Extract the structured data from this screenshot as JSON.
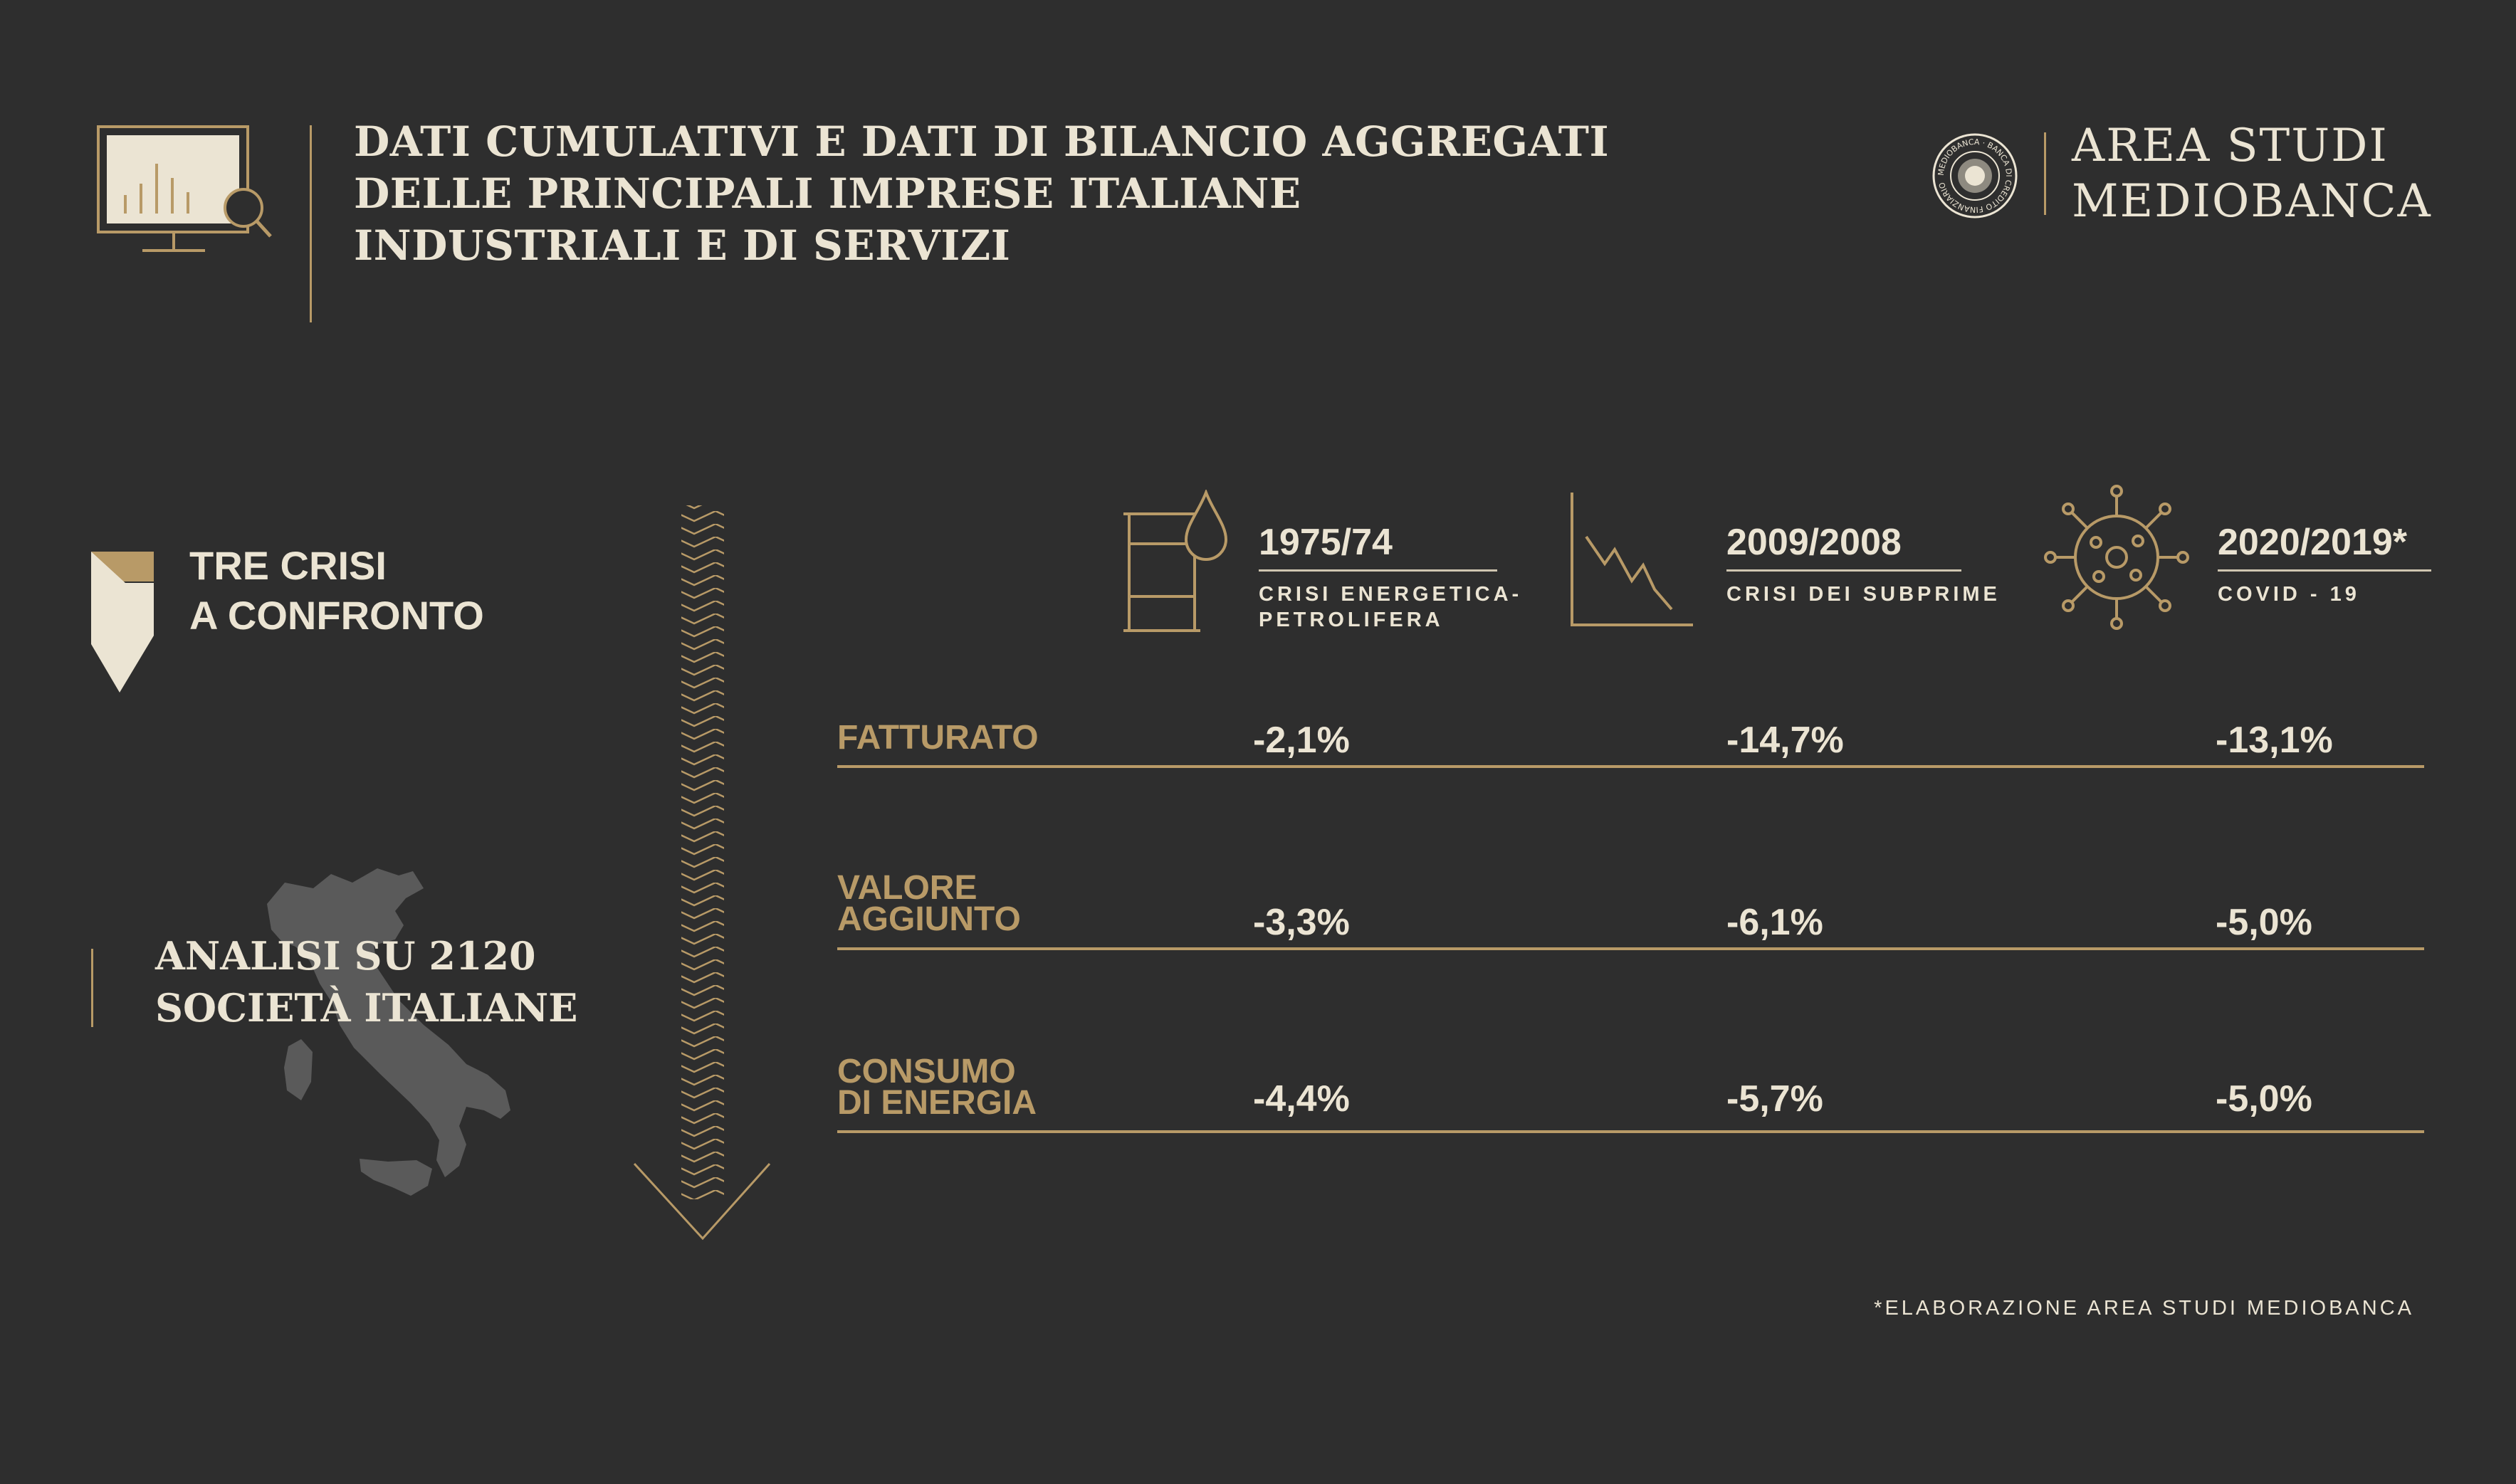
{
  "header": {
    "title_lines": [
      "DATI CUMULATIVI E DATI DI BILANCIO AGGREGATI",
      "DELLE PRINCIPALI IMPRESE ITALIANE",
      "INDUSTRIALI E DI SERVIZI"
    ],
    "brand_lines": [
      "AREA STUDI",
      "MEDIOBANCA"
    ],
    "seal_text": "MEDIOBANCA · BANCA DI CREDITO FINANZIARIO"
  },
  "left": {
    "tre_crisi_lines": [
      "TRE CRISI",
      "A CONFRONTO"
    ],
    "analisi_lines": [
      "ANALISI SU 2120",
      "SOCIETÀ ITALIANE"
    ]
  },
  "periods": [
    {
      "year": "1975/74",
      "label_lines": [
        "CRISI ENERGETICA-",
        "PETROLIFERA"
      ],
      "icon": "oil-barrel-icon"
    },
    {
      "year": "2009/2008",
      "label_lines": [
        "CRISI DEI SUBPRIME"
      ],
      "icon": "falling-chart-icon"
    },
    {
      "year": "2020/2019*",
      "label_lines": [
        "COVID - 19"
      ],
      "icon": "virus-icon"
    }
  ],
  "rows": [
    {
      "label_lines": [
        "FATTURATO"
      ],
      "values": [
        "-2,1%",
        "-14,7%",
        "-13,1%"
      ]
    },
    {
      "label_lines": [
        "VALORE",
        "AGGIUNTO"
      ],
      "values": [
        "-3,3%",
        "-6,1%",
        "-5,0%"
      ]
    },
    {
      "label_lines": [
        "CONSUMO",
        "DI ENERGIA"
      ],
      "values": [
        "-4,4%",
        "-5,7%",
        "-5,0%"
      ]
    }
  ],
  "footnote": "*ELABORAZIONE AREA STUDI MEDIOBANCA",
  "colors": {
    "background": "#2e2e2e",
    "accent": "#b89a67",
    "text": "#ebe4d3",
    "map": "#5a5a5a"
  }
}
